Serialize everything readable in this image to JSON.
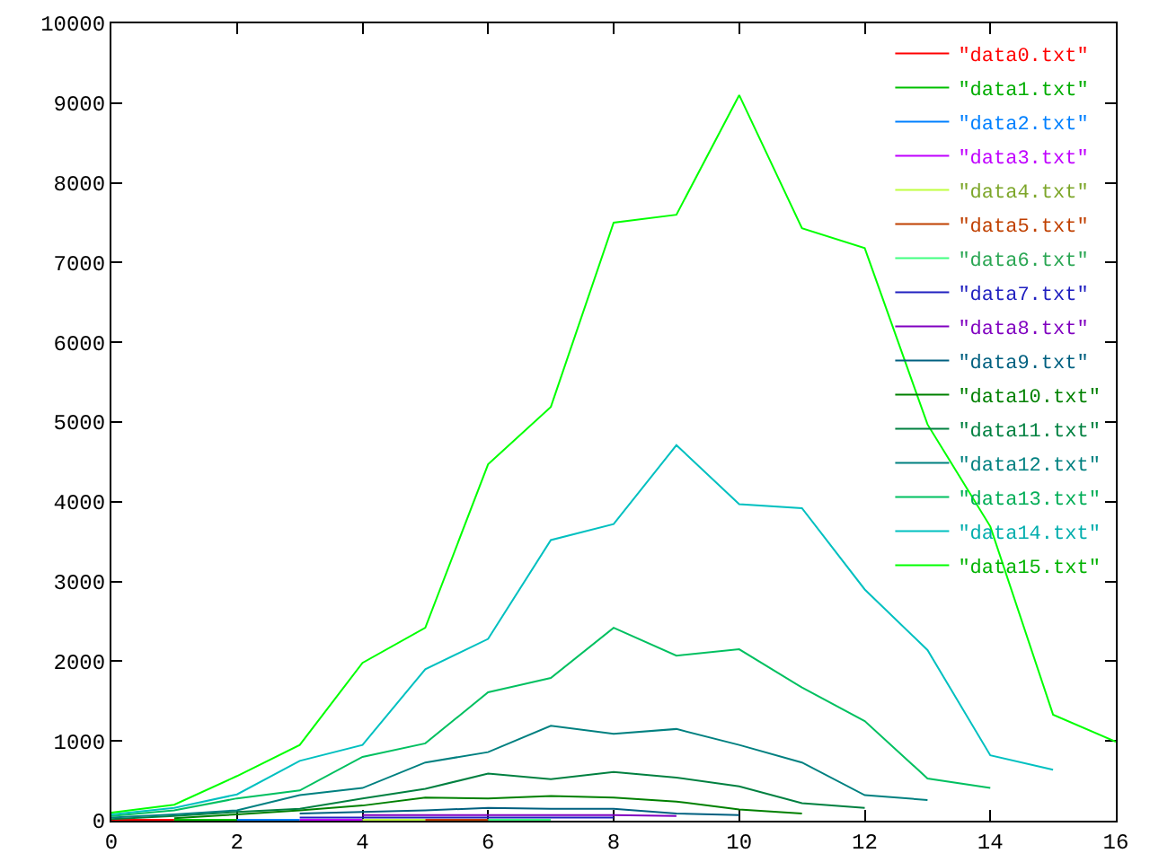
{
  "chart_data": {
    "type": "line",
    "xlim": [
      0,
      16
    ],
    "xticks": [
      0,
      2,
      4,
      6,
      8,
      10,
      12,
      14,
      16
    ],
    "ylim": [
      0,
      10000
    ],
    "yticks": [
      0,
      1000,
      2000,
      3000,
      4000,
      5000,
      6000,
      7000,
      8000,
      9000,
      10000
    ],
    "grid": false,
    "legend": "top right",
    "marker": "none",
    "line_style": "solid",
    "series": [
      {
        "name": "\"data0.txt\"",
        "color": "#ff0000",
        "x": [
          0,
          1
        ],
        "values": [
          10,
          10
        ]
      },
      {
        "name": "\"data1.txt\"",
        "color": "#00c000",
        "x": [
          1,
          2
        ],
        "values": [
          10,
          10
        ]
      },
      {
        "name": "\"data2.txt\"",
        "color": "#0080ff",
        "x": [
          2,
          3
        ],
        "values": [
          10,
          10
        ]
      },
      {
        "name": "\"data3.txt\"",
        "color": "#c000ff",
        "x": [
          3,
          4
        ],
        "values": [
          10,
          10
        ]
      },
      {
        "name": "\"data4.txt\"",
        "color": "#c0ff40",
        "x": [
          4,
          5
        ],
        "values": [
          10,
          10
        ]
      },
      {
        "name": "\"data5.txt\"",
        "color": "#c04000",
        "x": [
          5,
          6
        ],
        "values": [
          10,
          10
        ]
      },
      {
        "name": "\"data6.txt\"",
        "color": "#40ff80",
        "x": [
          6,
          7
        ],
        "values": [
          10,
          10
        ]
      },
      {
        "name": "\"data7.txt\"",
        "color": "#2020c0",
        "x": [
          3,
          4,
          5,
          6,
          7,
          8
        ],
        "values": [
          40,
          40,
          40,
          40,
          40,
          40
        ]
      },
      {
        "name": "\"data8.txt\"",
        "color": "#8000c0",
        "x": [
          4,
          5,
          6,
          7,
          8,
          9
        ],
        "values": [
          70,
          70,
          70,
          70,
          70,
          60
        ]
      },
      {
        "name": "\"data9.txt\"",
        "color": "#006080",
        "x": [
          3,
          4,
          5,
          6,
          7,
          8,
          9,
          10
        ],
        "values": [
          90,
          110,
          130,
          160,
          150,
          150,
          90,
          70
        ]
      },
      {
        "name": "\"data10.txt\"",
        "color": "#008000",
        "x": [
          1,
          2,
          3,
          4,
          5,
          6,
          7,
          8,
          9,
          10,
          11
        ],
        "values": [
          30,
          80,
          130,
          190,
          290,
          280,
          310,
          290,
          240,
          140,
          90
        ]
      },
      {
        "name": "\"data11.txt\"",
        "color": "#008040",
        "x": [
          0,
          1,
          2,
          3,
          4,
          5,
          6,
          7,
          8,
          9,
          10,
          11,
          12
        ],
        "values": [
          20,
          60,
          110,
          150,
          280,
          400,
          590,
          520,
          610,
          540,
          430,
          220,
          160
        ]
      },
      {
        "name": "\"data12.txt\"",
        "color": "#008080",
        "x": [
          0,
          1,
          2,
          3,
          4,
          5,
          6,
          7,
          8,
          9,
          10,
          11,
          12,
          13
        ],
        "values": [
          40,
          80,
          130,
          320,
          410,
          730,
          860,
          1190,
          1090,
          1150,
          950,
          730,
          320,
          260
        ]
      },
      {
        "name": "\"data13.txt\"",
        "color": "#00c060",
        "x": [
          0,
          1,
          2,
          3,
          4,
          5,
          6,
          7,
          8,
          9,
          10,
          11,
          12,
          13,
          14
        ],
        "values": [
          60,
          130,
          280,
          380,
          800,
          970,
          1610,
          1790,
          2420,
          2070,
          2150,
          1670,
          1250,
          530,
          410
        ]
      },
      {
        "name": "\"data14.txt\"",
        "color": "#00c0c0",
        "x": [
          0,
          1,
          2,
          3,
          4,
          5,
          6,
          7,
          8,
          9,
          10,
          11,
          12,
          13,
          14,
          15
        ],
        "values": [
          80,
          160,
          330,
          750,
          950,
          1900,
          2280,
          3520,
          3720,
          4710,
          3970,
          3920,
          2900,
          2140,
          820,
          640
        ]
      },
      {
        "name": "\"data15.txt\"",
        "color": "#00ff00",
        "x": [
          0,
          1,
          2,
          3,
          4,
          5,
          6,
          7,
          8,
          9,
          10,
          11,
          12,
          13,
          14,
          15,
          16
        ],
        "values": [
          100,
          200,
          560,
          950,
          1980,
          2420,
          4470,
          5190,
          7500,
          7600,
          9100,
          7430,
          7180,
          4970,
          3690,
          1330,
          990
        ]
      }
    ]
  }
}
